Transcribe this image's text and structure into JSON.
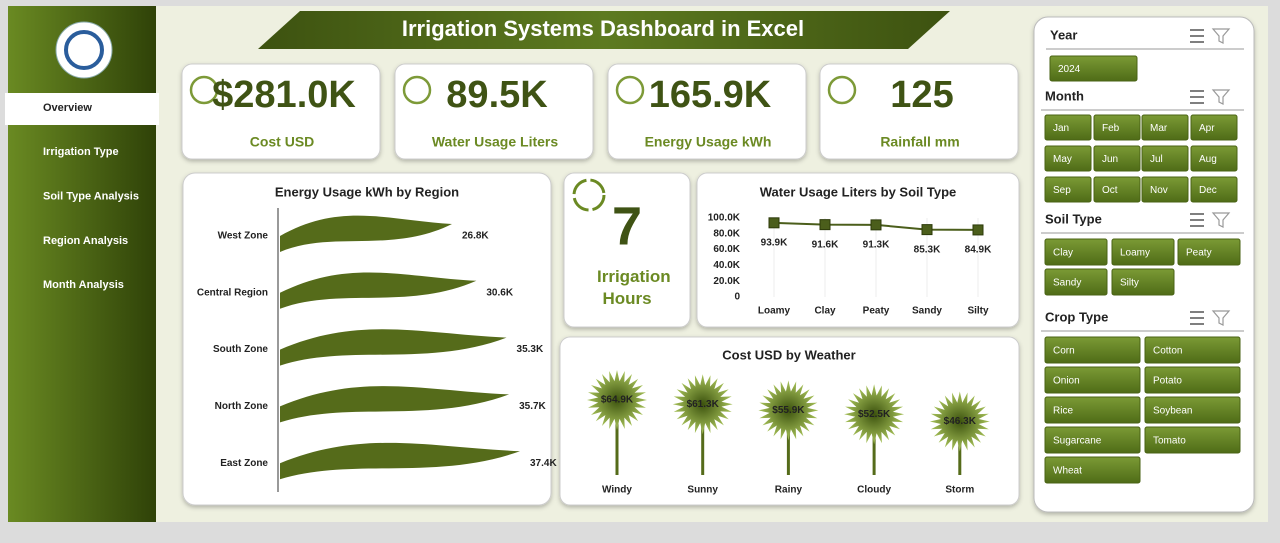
{
  "title": "Irrigation Systems Dashboard in Excel",
  "nav": {
    "items": [
      "Overview",
      "Irrigation Type",
      "Soil Type Analysis",
      "Region Analysis",
      "Month Analysis"
    ]
  },
  "kpis": [
    {
      "value": "$281.0K",
      "label": "Cost USD"
    },
    {
      "value": "89.5K",
      "label": "Water Usage Liters"
    },
    {
      "value": "165.9K",
      "label": "Energy Usage kWh"
    },
    {
      "value": "125",
      "label": "Rainfall mm"
    }
  ],
  "irrigation_hours": {
    "value": "7",
    "label": "Irrigation Hours"
  },
  "slicers": [
    {
      "title": "Year",
      "items": [
        "2024"
      ]
    },
    {
      "title": "Month",
      "items": [
        "Jan",
        "Feb",
        "Mar",
        "Apr",
        "May",
        "Jun",
        "Jul",
        "Aug",
        "Sep",
        "Oct",
        "Nov",
        "Dec"
      ]
    },
    {
      "title": "Soil Type",
      "items": [
        "Clay",
        "Loamy",
        "Peaty",
        "Sandy",
        "Silty"
      ]
    },
    {
      "title": "Crop Type",
      "items": [
        "Corn",
        "Cotton",
        "Onion",
        "Potato",
        "Rice",
        "Soybean",
        "Sugarcane",
        "Tomato",
        "Wheat"
      ]
    }
  ],
  "chart_data": [
    {
      "type": "bar",
      "orientation": "horizontal",
      "title": "Energy Usage kWh by Region",
      "categories": [
        "West Zone",
        "Central Region",
        "South Zone",
        "North Zone",
        "East Zone"
      ],
      "values": [
        26800,
        30600,
        35300,
        35700,
        37400
      ],
      "value_labels": [
        "26.8K",
        "30.6K",
        "35.3K",
        "35.7K",
        "37.4K"
      ],
      "color": "#556b1a"
    },
    {
      "type": "line",
      "title": "Water Usage Liters by Soil Type",
      "categories": [
        "Loamy",
        "Clay",
        "Peaty",
        "Sandy",
        "Silty"
      ],
      "values": [
        93900,
        91600,
        91300,
        85300,
        84900
      ],
      "value_labels": [
        "93.9K",
        "91.6K",
        "91.3K",
        "85.3K",
        "84.9K"
      ],
      "color": "#4b5e1b",
      "ylim": [
        0,
        100000
      ],
      "yticks": [
        0,
        {
          "value": 20000,
          "label": "20.0K"
        },
        {
          "value": 40000,
          "label": "40.0K"
        },
        {
          "value": 60000,
          "label": "60.0K"
        },
        {
          "value": 80000,
          "label": "80.0K"
        },
        {
          "value": 100000,
          "label": "100.0K"
        }
      ]
    },
    {
      "type": "lollipop",
      "title": "Cost USD by Weather",
      "categories": [
        "Windy",
        "Sunny",
        "Rainy",
        "Cloudy",
        "Storm"
      ],
      "values": [
        64900,
        61300,
        55900,
        52500,
        46300
      ],
      "value_labels": [
        "$64.9K",
        "$61.3K",
        "$55.9K",
        "$52.5K",
        "$46.3K"
      ],
      "color": "#556b1a"
    }
  ]
}
